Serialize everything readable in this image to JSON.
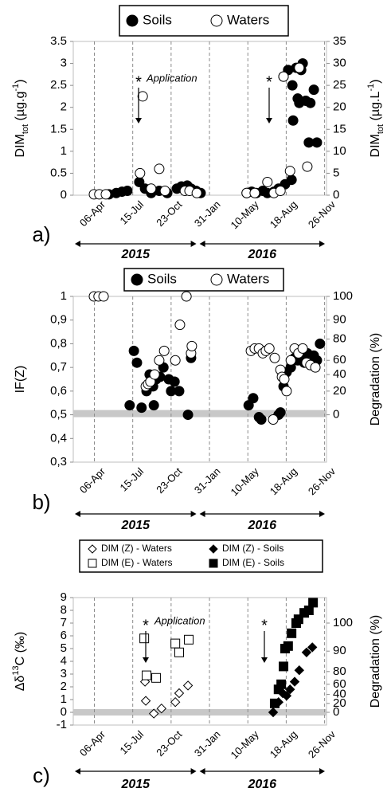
{
  "chart_data": [
    {
      "type": "scatter",
      "panel_label": "a)",
      "ylabel": {
        "text": "DIM",
        "sub": "tot",
        "unit": " (µg.g",
        "sup": "-1",
        "end": ")"
      },
      "y2label": {
        "text": "DIM",
        "sub": "tot",
        "unit": " (µg.L",
        "sup": "-1",
        "end": ")"
      },
      "annotations": [
        "*",
        "Application",
        "*"
      ],
      "xlim": [
        40,
        700
      ],
      "xticks": [
        {
          "value": 95,
          "label": "06-Apr"
        },
        {
          "value": 195,
          "label": "15-Jul"
        },
        {
          "value": 295,
          "label": "23-Oct"
        },
        {
          "value": 395,
          "label": "31-Jan"
        },
        {
          "value": 495,
          "label": "10-May"
        },
        {
          "value": 595,
          "label": "18-Aug"
        },
        {
          "value": 695,
          "label": "26-Nov"
        }
      ],
      "ylim": [
        0,
        3.5
      ],
      "yticks": [
        0,
        0.5,
        1,
        1.5,
        2,
        2.5,
        3,
        3.5
      ],
      "y2lim": [
        0,
        35
      ],
      "y2ticks": [
        0,
        5,
        10,
        15,
        20,
        25,
        30,
        35
      ],
      "grid": true,
      "periods": [
        {
          "label": "2015",
          "from": 40,
          "to": 365
        },
        {
          "label": "2016",
          "from": 365,
          "to": 700
        }
      ],
      "series": [
        {
          "name": "Soils",
          "marker": "circle",
          "color": "#000000",
          "fill": "#000000",
          "x": [
            133,
            152,
            167,
            181,
            212,
            227,
            243,
            264,
            285,
            310,
            322,
            337,
            347,
            360,
            372,
            492,
            505,
            517,
            534,
            546,
            563,
            575,
            592,
            609,
            588,
            600,
            611,
            621,
            634,
            613,
            625,
            638,
            629,
            646,
            658,
            667,
            654,
            675
          ],
          "values": [
            0.02,
            0.05,
            0.08,
            0.1,
            0.3,
            0.15,
            0.05,
            0.1,
            0.05,
            0.15,
            0.2,
            0.22,
            0.15,
            0.1,
            0.05,
            0.05,
            0.08,
            0.05,
            0.1,
            0.05,
            0.08,
            0.15,
            0.25,
            0.35,
            2.7,
            2.85,
            2.5,
            2.9,
            2.85,
            1.7,
            2.2,
            3.0,
            2.1,
            2.15,
            2.1,
            2.4,
            1.2,
            1.2
          ]
        },
        {
          "name": "Waters",
          "marker": "circle",
          "color": "#000000",
          "fill": "#ffffff",
          "axis": "y2",
          "x": [
            94,
            108,
            125,
            214,
            221,
            243,
            264,
            279,
            331,
            343,
            362,
            492,
            513,
            546,
            563,
            580,
            588,
            605,
            629,
            650
          ],
          "values": [
            0.2,
            0.2,
            0.2,
            5,
            22.5,
            1.5,
            6,
            1,
            1,
            1,
            0.5,
            0.5,
            0.5,
            3,
            0.5,
            1,
            27,
            5.5,
            29,
            6.5
          ]
        }
      ]
    },
    {
      "type": "scatter",
      "panel_label": "b)",
      "ylabel": {
        "text": "IF(Z)"
      },
      "y2label": {
        "text": "Degradation (%)"
      },
      "xlim": [
        40,
        700
      ],
      "xticks": [
        {
          "value": 95,
          "label": "06-Apr"
        },
        {
          "value": 195,
          "label": "15-Jul"
        },
        {
          "value": 295,
          "label": "23-Oct"
        },
        {
          "value": 395,
          "label": "31-Jan"
        },
        {
          "value": 495,
          "label": "10-May"
        },
        {
          "value": 595,
          "label": "18-Aug"
        },
        {
          "value": 695,
          "label": "26-Nov"
        }
      ],
      "ylim": [
        0.3,
        1
      ],
      "yticks": [
        {
          "value": 0.3,
          "label": "0,3"
        },
        {
          "value": 0.4,
          "label": "0,4"
        },
        {
          "value": 0.5,
          "label": "0,5"
        },
        {
          "value": 0.6,
          "label": "0,6"
        },
        {
          "value": 0.7,
          "label": "0,7"
        },
        {
          "value": 0.8,
          "label": "0,8"
        },
        {
          "value": 0.9,
          "label": "0,9"
        },
        1
      ],
      "y2ticks": [
        {
          "value": 0,
          "at": 0.5
        },
        {
          "value": 20,
          "at": 0.6
        },
        {
          "value": 40,
          "at": 0.67
        },
        {
          "value": 60,
          "at": 0.73
        },
        {
          "value": 80,
          "at": 0.82
        },
        {
          "value": 90,
          "at": 0.9
        },
        {
          "value": 100,
          "at": 1.0
        }
      ],
      "reference_band": [
        0.49,
        0.52
      ],
      "grid": true,
      "periods": [
        {
          "label": "2015",
          "from": 40,
          "to": 365
        },
        {
          "label": "2016",
          "from": 365,
          "to": 700
        }
      ],
      "series": [
        {
          "name": "Soils",
          "marker": "circle",
          "color": "#000000",
          "fill": "#000000",
          "x": [
            198,
            206,
            187,
            218,
            231,
            239,
            248,
            256,
            250,
            266,
            275,
            289,
            295,
            304,
            316,
            339,
            347,
            497,
            509,
            524,
            530,
            575,
            580,
            588,
            596,
            607,
            617,
            625,
            634,
            642,
            650,
            658,
            667,
            675,
            683
          ],
          "values": [
            0.77,
            0.72,
            0.54,
            0.53,
            0.6,
            0.67,
            0.62,
            0.65,
            0.54,
            0.66,
            0.7,
            0.65,
            0.6,
            0.64,
            0.6,
            0.5,
            0.74,
            0.54,
            0.57,
            0.49,
            0.48,
            0.5,
            0.51,
            0.62,
            0.68,
            0.7,
            0.74,
            0.73,
            0.75,
            0.72,
            0.76,
            0.71,
            0.75,
            0.73,
            0.8
          ]
        },
        {
          "name": "Waters",
          "marker": "circle",
          "color": "#000000",
          "fill": "#ffffff",
          "x": [
            94,
            106,
            119,
            229,
            235,
            241,
            252,
            264,
            277,
            306,
            335,
            318,
            347,
            349,
            503,
            513,
            524,
            534,
            542,
            551,
            565,
            561,
            580,
            584,
            590,
            596,
            607,
            617,
            627,
            638,
            648,
            658,
            671
          ],
          "values": [
            1,
            1,
            1,
            0.62,
            0.63,
            0.64,
            0.67,
            0.73,
            0.77,
            0.73,
            1,
            0.88,
            0.76,
            0.79,
            0.77,
            0.78,
            0.78,
            0.76,
            0.77,
            0.78,
            0.74,
            0.48,
            0.69,
            0.66,
            0.65,
            0.6,
            0.73,
            0.78,
            0.76,
            0.78,
            0.72,
            0.71,
            0.7
          ]
        }
      ]
    },
    {
      "type": "scatter",
      "panel_label": "c)",
      "ylabel": {
        "text": "Δδ",
        "sup": "13",
        "end": "C (‰)"
      },
      "y2label": {
        "text": "Degradation (%)"
      },
      "annotations": [
        "*",
        "Application",
        "*"
      ],
      "xlim": [
        40,
        700
      ],
      "xticks": [
        {
          "value": 95,
          "label": "06-Apr"
        },
        {
          "value": 195,
          "label": "15-Jul"
        },
        {
          "value": 295,
          "label": "23-Oct"
        },
        {
          "value": 395,
          "label": "31-Jan"
        },
        {
          "value": 495,
          "label": "10-May"
        },
        {
          "value": 595,
          "label": "18-Aug"
        },
        {
          "value": 695,
          "label": "26-Nov"
        }
      ],
      "ylim": [
        -1,
        9
      ],
      "yticks": [
        -1,
        0,
        1,
        2,
        3,
        4,
        5,
        6,
        7,
        8,
        9
      ],
      "y2ticks": [
        {
          "value": 0,
          "at": 0
        },
        {
          "value": 20,
          "at": 0.7
        },
        {
          "value": 40,
          "at": 1.4
        },
        {
          "value": 60,
          "at": 2.2
        },
        {
          "value": 80,
          "at": 3.2
        },
        {
          "value": 90,
          "at": 4.8
        },
        {
          "value": 100,
          "at": 7
        }
      ],
      "reference_band": [
        -0.25,
        0.25
      ],
      "grid": true,
      "periods": [
        {
          "label": "2015",
          "from": 40,
          "to": 365
        },
        {
          "label": "2016",
          "from": 365,
          "to": 700
        }
      ],
      "series": [
        {
          "name": "DIM (Z) - Waters",
          "marker": "diamond",
          "color": "#000000",
          "fill": "#ffffff",
          "x": [
            227,
            229,
            250,
            270,
            306,
            316,
            339
          ],
          "values": [
            2.4,
            0.9,
            -0.1,
            0.3,
            0.8,
            1.5,
            2.1
          ]
        },
        {
          "name": "DIM (E) - Waters",
          "marker": "square",
          "color": "#000000",
          "fill": "#ffffff",
          "x": [
            225,
            231,
            256,
            306,
            316,
            341
          ],
          "values": [
            5.8,
            2.9,
            2.7,
            5.4,
            4.7,
            5.7
          ]
        },
        {
          "name": "DIM (Z) - Soils",
          "marker": "diamond",
          "color": "#000000",
          "fill": "#000000",
          "x": [
            561,
            575,
            586,
            596,
            605,
            617,
            629,
            648,
            663
          ],
          "values": [
            0,
            0.8,
            1.5,
            1.3,
            1.8,
            2.4,
            3.3,
            4.7,
            5.1
          ]
        },
        {
          "name": "DIM (E) - Soils",
          "marker": "square",
          "color": "#000000",
          "fill": "#000000",
          "x": [
            565,
            575,
            582,
            588,
            592,
            600,
            609,
            621,
            627,
            642,
            654,
            665
          ],
          "values": [
            0.7,
            1.8,
            2.2,
            3.6,
            5.0,
            5.2,
            6.2,
            7.0,
            7.3,
            7.8,
            8.0,
            8.6
          ]
        }
      ]
    }
  ]
}
